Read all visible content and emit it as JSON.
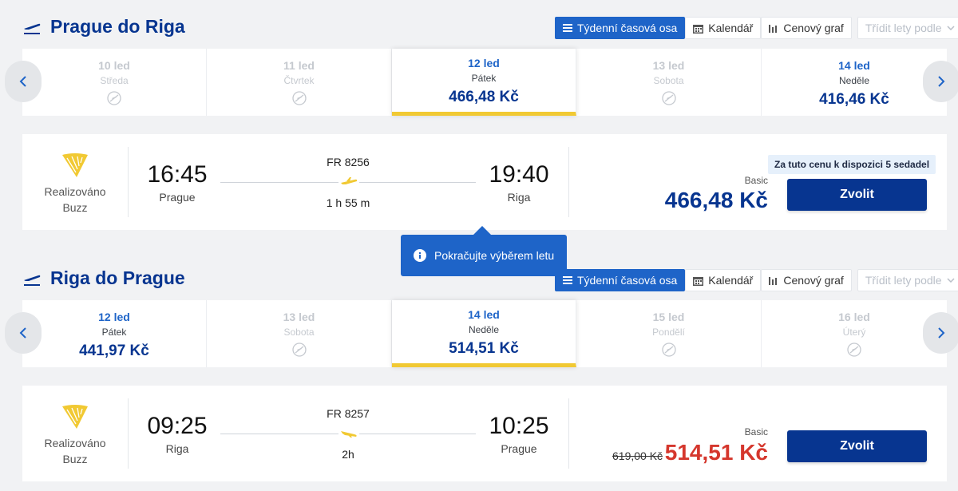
{
  "outbound": {
    "title": "Prague do Riga",
    "views": {
      "weekly": "Týdenní časová osa",
      "calendar": "Kalendář",
      "price_graph": "Cenový graf",
      "sort": "Třídit lety podle"
    },
    "days": [
      {
        "date": "10 led",
        "weekday": "Středa",
        "price": null
      },
      {
        "date": "11 led",
        "weekday": "Čtvrtek",
        "price": null
      },
      {
        "date": "12 led",
        "weekday": "Pátek",
        "price": "466,48 Kč"
      },
      {
        "date": "13 led",
        "weekday": "Sobota",
        "price": null
      },
      {
        "date": "14 led",
        "weekday": "Neděle",
        "price": "416,46 Kč"
      }
    ],
    "flight": {
      "operated_by": "Realizováno",
      "operator": "Buzz",
      "depart_time": "16:45",
      "depart_city": "Prague",
      "flight_number": "FR 8256",
      "duration": "1 h 55 m",
      "arrive_time": "19:40",
      "arrive_city": "Riga",
      "seats_note": "Za tuto cenu k dispozici 5 sedadel",
      "fare": "Basic",
      "price": "466,48 Kč",
      "select_label": "Zvolit"
    }
  },
  "tooltip": {
    "text": "Pokračujte výběrem letu"
  },
  "inbound": {
    "title": "Riga do Prague",
    "views": {
      "weekly": "Týdenní časová osa",
      "calendar": "Kalendář",
      "price_graph": "Cenový graf",
      "sort": "Třídit lety podle"
    },
    "days": [
      {
        "date": "12 led",
        "weekday": "Pátek",
        "price": "441,97 Kč"
      },
      {
        "date": "13 led",
        "weekday": "Sobota",
        "price": null
      },
      {
        "date": "14 led",
        "weekday": "Neděle",
        "price": "514,51 Kč"
      },
      {
        "date": "15 led",
        "weekday": "Pondělí",
        "price": null
      },
      {
        "date": "16 led",
        "weekday": "Úterý",
        "price": null
      }
    ],
    "flight": {
      "operated_by": "Realizováno",
      "operator": "Buzz",
      "depart_time": "09:25",
      "depart_city": "Riga",
      "flight_number": "FR 8257",
      "duration": "2h",
      "arrive_time": "10:25",
      "arrive_city": "Prague",
      "fare": "Basic",
      "old_price": "619,00 Kč",
      "price": "514,51 Kč",
      "select_label": "Zvolit"
    }
  },
  "colors": {
    "brand_blue": "#073590",
    "accent_blue": "#1e64c8",
    "selected_underline": "#f1c933",
    "discount_red": "#d5372d",
    "logo_gold": "#f1c933"
  }
}
